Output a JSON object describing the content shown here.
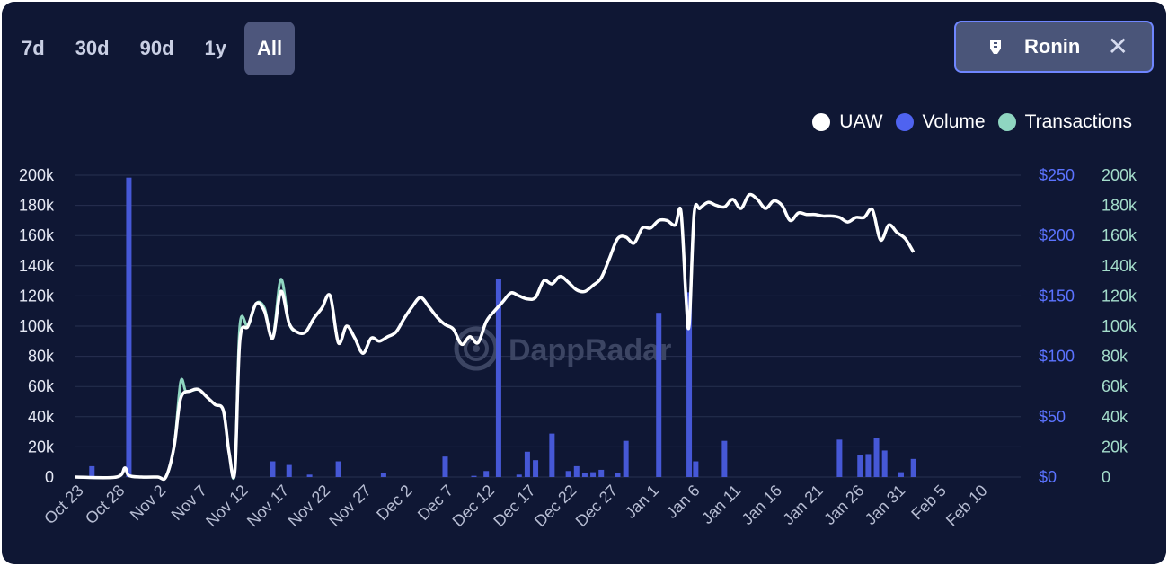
{
  "tabs": [
    {
      "label": "7d"
    },
    {
      "label": "30d"
    },
    {
      "label": "90d"
    },
    {
      "label": "1y"
    },
    {
      "label": "All",
      "active": true
    }
  ],
  "filter_chip": {
    "label": "Ronin",
    "icon": "ronin-shield-icon",
    "close_icon": "close-icon"
  },
  "watermark": "DappRadar",
  "colors": {
    "uaw": "#ffffff",
    "volume": "#4f63f0",
    "transactions": "#8fd6c1"
  },
  "chart_data": {
    "type": "line",
    "legend_placement": "top-right",
    "legend": [
      {
        "name": "UAW",
        "color": "#ffffff"
      },
      {
        "name": "Volume",
        "color": "#4f63f0"
      },
      {
        "name": "Transactions",
        "color": "#8fd6c1"
      }
    ],
    "x_tick_labels": [
      "Oct 23",
      "Oct 28",
      "Nov 2",
      "Nov 7",
      "Nov 12",
      "Nov 17",
      "Nov 22",
      "Nov 27",
      "Dec 2",
      "Dec 7",
      "Dec 12",
      "Dec 17",
      "Dec 22",
      "Dec 27",
      "Jan 1",
      "Jan 6",
      "Jan 11",
      "Jan 16",
      "Jan 21",
      "Jan 26",
      "Jan 31",
      "Feb 5",
      "Feb 10"
    ],
    "x_days_per_tick": 5,
    "left_axis": {
      "ticks": [
        "0",
        "20k",
        "40k",
        "60k",
        "80k",
        "100k",
        "120k",
        "140k",
        "160k",
        "180k",
        "200k"
      ],
      "ylim": [
        0,
        200000
      ]
    },
    "right_axis_volume": {
      "ticks": [
        "$0",
        "$50",
        "$100",
        "$150",
        "$200",
        "$250"
      ],
      "ylim": [
        0,
        250
      ]
    },
    "right_axis_transactions": {
      "ticks": [
        "0",
        "20k",
        "40k",
        "60k",
        "80k",
        "100k",
        "120k",
        "140k",
        "160k",
        "180k",
        "200k"
      ],
      "ylim": [
        0,
        200000
      ]
    },
    "grid": true,
    "uaw": [
      [
        0,
        0
      ],
      [
        5,
        0
      ],
      [
        6,
        6000
      ],
      [
        6.5,
        1000
      ],
      [
        8,
        0
      ],
      [
        10,
        0
      ],
      [
        11,
        0
      ],
      [
        12,
        20000
      ],
      [
        12.8,
        52000
      ],
      [
        14,
        57000
      ],
      [
        15,
        58000
      ],
      [
        16,
        53000
      ],
      [
        17,
        48000
      ],
      [
        18,
        44000
      ],
      [
        18.7,
        16000
      ],
      [
        19.4,
        4000
      ],
      [
        20,
        90000
      ],
      [
        21,
        100000
      ],
      [
        22,
        115000
      ],
      [
        23,
        110000
      ],
      [
        24,
        92000
      ],
      [
        25,
        123000
      ],
      [
        26,
        102000
      ],
      [
        27,
        96000
      ],
      [
        28,
        96000
      ],
      [
        29,
        105000
      ],
      [
        30,
        112000
      ],
      [
        31,
        120000
      ],
      [
        32,
        89000
      ],
      [
        33,
        100000
      ],
      [
        34,
        92000
      ],
      [
        35,
        82000
      ],
      [
        36,
        92000
      ],
      [
        37,
        90000
      ],
      [
        38,
        93000
      ],
      [
        39,
        96000
      ],
      [
        40,
        105000
      ],
      [
        41,
        113000
      ],
      [
        42,
        119000
      ],
      [
        43,
        113000
      ],
      [
        44,
        106000
      ],
      [
        45,
        101000
      ],
      [
        46,
        98000
      ],
      [
        47,
        88000
      ],
      [
        48,
        93000
      ],
      [
        49,
        89000
      ],
      [
        50,
        103000
      ],
      [
        51,
        110000
      ],
      [
        52,
        116000
      ],
      [
        53,
        122000
      ],
      [
        54,
        120000
      ],
      [
        55,
        118000
      ],
      [
        56,
        119000
      ],
      [
        57,
        130000
      ],
      [
        58,
        128000
      ],
      [
        59,
        133000
      ],
      [
        60,
        129000
      ],
      [
        61,
        124000
      ],
      [
        62,
        123000
      ],
      [
        63,
        127000
      ],
      [
        64,
        132000
      ],
      [
        65,
        145000
      ],
      [
        66,
        158000
      ],
      [
        67,
        159000
      ],
      [
        68,
        155000
      ],
      [
        69,
        165000
      ],
      [
        70,
        165000
      ],
      [
        71,
        170000
      ],
      [
        72,
        170000
      ],
      [
        73,
        167000
      ],
      [
        73.7,
        176000
      ],
      [
        74.3,
        120000
      ],
      [
        74.7,
        101000
      ],
      [
        75.3,
        174000
      ],
      [
        76,
        178000
      ],
      [
        77,
        182000
      ],
      [
        78,
        180000
      ],
      [
        79,
        179000
      ],
      [
        80,
        184000
      ],
      [
        81,
        178000
      ],
      [
        82,
        187000
      ],
      [
        83,
        184000
      ],
      [
        84,
        178000
      ],
      [
        85,
        183000
      ],
      [
        86,
        180000
      ],
      [
        87,
        170000
      ],
      [
        88,
        175000
      ],
      [
        89,
        174000
      ],
      [
        90,
        174000
      ],
      [
        91,
        173000
      ],
      [
        92,
        173000
      ],
      [
        93,
        172000
      ],
      [
        94,
        169000
      ],
      [
        95,
        172000
      ],
      [
        96,
        172000
      ],
      [
        97,
        177000
      ],
      [
        98,
        157000
      ],
      [
        99,
        167000
      ],
      [
        100,
        162000
      ],
      [
        101,
        158000
      ],
      [
        102,
        149000
      ]
    ],
    "transactions": [
      [
        0,
        0
      ],
      [
        5,
        0
      ],
      [
        6,
        6000
      ],
      [
        6.5,
        1000
      ],
      [
        8,
        0
      ],
      [
        10,
        0
      ],
      [
        11,
        0
      ],
      [
        12,
        20000
      ],
      [
        12.8,
        63000
      ],
      [
        13.4,
        57000
      ],
      [
        14,
        57000
      ],
      [
        15,
        58000
      ],
      [
        16,
        53000
      ],
      [
        17,
        48000
      ],
      [
        18,
        44000
      ],
      [
        18.7,
        16000
      ],
      [
        19.4,
        4000
      ],
      [
        20,
        100000
      ],
      [
        21,
        100000
      ],
      [
        22,
        115000
      ],
      [
        23,
        112000
      ],
      [
        24,
        92000
      ],
      [
        25,
        131000
      ],
      [
        26,
        102000
      ],
      [
        27,
        96000
      ],
      [
        28,
        96000
      ],
      [
        29,
        105000
      ],
      [
        30,
        112000
      ],
      [
        31,
        120000
      ],
      [
        32,
        89000
      ],
      [
        33,
        100000
      ],
      [
        34,
        92000
      ],
      [
        35,
        82000
      ],
      [
        36,
        92000
      ],
      [
        37,
        90000
      ],
      [
        38,
        93000
      ],
      [
        39,
        96000
      ],
      [
        40,
        105000
      ],
      [
        41,
        113000
      ],
      [
        42,
        119000
      ],
      [
        43,
        113000
      ],
      [
        44,
        106000
      ],
      [
        45,
        101000
      ],
      [
        46,
        98000
      ],
      [
        47,
        88000
      ],
      [
        48,
        93000
      ],
      [
        49,
        89000
      ],
      [
        50,
        103000
      ],
      [
        51,
        110000
      ],
      [
        52,
        116000
      ],
      [
        53,
        122000
      ],
      [
        54,
        120000
      ],
      [
        55,
        118000
      ],
      [
        56,
        119000
      ],
      [
        57,
        130000
      ],
      [
        58,
        128000
      ],
      [
        59,
        133000
      ],
      [
        60,
        129000
      ],
      [
        61,
        124000
      ],
      [
        62,
        123000
      ],
      [
        63,
        127000
      ],
      [
        64,
        132000
      ],
      [
        65,
        145000
      ],
      [
        66,
        158000
      ],
      [
        67,
        159000
      ],
      [
        68,
        155000
      ],
      [
        69,
        165000
      ],
      [
        70,
        165000
      ],
      [
        71,
        170000
      ],
      [
        72,
        170000
      ],
      [
        73,
        167000
      ],
      [
        73.7,
        176000
      ],
      [
        74.3,
        120000
      ],
      [
        74.7,
        101000
      ],
      [
        75.3,
        174000
      ],
      [
        76,
        178000
      ],
      [
        77,
        182000
      ],
      [
        78,
        180000
      ],
      [
        79,
        179000
      ],
      [
        80,
        184000
      ],
      [
        81,
        178000
      ],
      [
        82,
        187000
      ],
      [
        83,
        184000
      ],
      [
        84,
        178000
      ],
      [
        85,
        183000
      ],
      [
        86,
        180000
      ],
      [
        87,
        170000
      ],
      [
        88,
        175000
      ],
      [
        89,
        174000
      ],
      [
        90,
        174000
      ],
      [
        91,
        173000
      ],
      [
        92,
        173000
      ],
      [
        93,
        172000
      ],
      [
        94,
        169000
      ],
      [
        95,
        172000
      ],
      [
        96,
        172000
      ],
      [
        97,
        177000
      ],
      [
        98,
        157000
      ],
      [
        99,
        167000
      ],
      [
        100,
        162000
      ],
      [
        101,
        158000
      ],
      [
        102,
        149000
      ]
    ],
    "volume": [
      [
        2,
        9
      ],
      [
        6.5,
        248
      ],
      [
        24,
        13
      ],
      [
        26,
        10
      ],
      [
        28.5,
        2
      ],
      [
        32,
        13
      ],
      [
        37.5,
        3
      ],
      [
        45,
        17
      ],
      [
        48.5,
        1
      ],
      [
        50,
        5
      ],
      [
        51.5,
        164
      ],
      [
        54,
        2
      ],
      [
        55,
        21
      ],
      [
        56,
        14
      ],
      [
        58,
        36
      ],
      [
        60,
        5
      ],
      [
        61,
        9
      ],
      [
        62,
        3
      ],
      [
        63,
        4
      ],
      [
        64,
        6
      ],
      [
        66,
        3
      ],
      [
        67,
        30
      ],
      [
        71,
        136
      ],
      [
        74.7,
        153
      ],
      [
        75.5,
        13
      ],
      [
        79,
        30
      ],
      [
        93,
        31
      ],
      [
        95.5,
        18
      ],
      [
        96.5,
        19
      ],
      [
        97.5,
        32
      ],
      [
        98.5,
        22
      ],
      [
        100.5,
        4
      ],
      [
        102,
        15
      ]
    ]
  }
}
